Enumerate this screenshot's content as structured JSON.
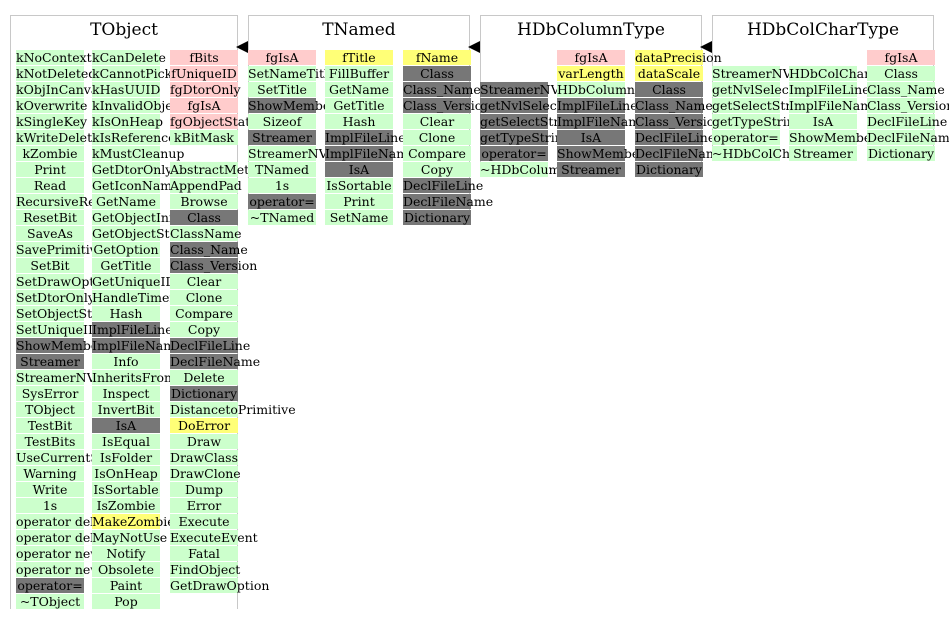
{
  "classes": [
    {
      "title": "TObject",
      "columns": [
        [
          {
            "t": "kNoContextMenu",
            "c": "g"
          },
          {
            "t": "kNotDeleted",
            "c": "g"
          },
          {
            "t": "kObjInCanvas",
            "c": "g"
          },
          {
            "t": "kOverwrite",
            "c": "g"
          },
          {
            "t": "kSingleKey",
            "c": "g"
          },
          {
            "t": "kWriteDelete",
            "c": "g"
          },
          {
            "t": "kZombie",
            "c": "g"
          },
          {
            "t": "Print",
            "c": "g"
          },
          {
            "t": "Read",
            "c": "g"
          },
          {
            "t": "RecursiveRemove",
            "c": "g"
          },
          {
            "t": "ResetBit",
            "c": "g"
          },
          {
            "t": "SaveAs",
            "c": "g"
          },
          {
            "t": "SavePrimitive",
            "c": "g"
          },
          {
            "t": "SetBit",
            "c": "g"
          },
          {
            "t": "SetDrawOption",
            "c": "g"
          },
          {
            "t": "SetDtorOnly",
            "c": "g"
          },
          {
            "t": "SetObjectStat",
            "c": "g"
          },
          {
            "t": "SetUniqueID",
            "c": "g"
          },
          {
            "t": "ShowMembers",
            "c": "d"
          },
          {
            "t": "Streamer",
            "c": "d"
          },
          {
            "t": "StreamerNVirtual",
            "c": "g"
          },
          {
            "t": "SysError",
            "c": "g"
          },
          {
            "t": "TObject",
            "c": "g"
          },
          {
            "t": "TestBit",
            "c": "g"
          },
          {
            "t": "TestBits",
            "c": "g"
          },
          {
            "t": "UseCurrentStyle",
            "c": "g"
          },
          {
            "t": "Warning",
            "c": "g"
          },
          {
            "t": "Write",
            "c": "g"
          },
          {
            "t": "1s",
            "c": "g"
          },
          {
            "t": "operator delete",
            "c": "g"
          },
          {
            "t": "operator delete[]",
            "c": "g"
          },
          {
            "t": "operator new",
            "c": "g"
          },
          {
            "t": "operator new[]",
            "c": "g"
          },
          {
            "t": "operator=",
            "c": "d"
          },
          {
            "t": "~TObject",
            "c": "g"
          }
        ],
        [
          {
            "t": "kCanDelete",
            "c": "g"
          },
          {
            "t": "kCannotPick",
            "c": "g"
          },
          {
            "t": "kHasUUID",
            "c": "g"
          },
          {
            "t": "kInvalidObject",
            "c": "g"
          },
          {
            "t": "kIsOnHeap",
            "c": "g"
          },
          {
            "t": "kIsReferenced",
            "c": "g"
          },
          {
            "t": "kMustCleanup",
            "c": "g"
          },
          {
            "t": "GetDtorOnly",
            "c": "g"
          },
          {
            "t": "GetIconName",
            "c": "g"
          },
          {
            "t": "GetName",
            "c": "g"
          },
          {
            "t": "GetObjectInfo",
            "c": "g"
          },
          {
            "t": "GetObjectStat",
            "c": "g"
          },
          {
            "t": "GetOption",
            "c": "g"
          },
          {
            "t": "GetTitle",
            "c": "g"
          },
          {
            "t": "GetUniqueID",
            "c": "g"
          },
          {
            "t": "HandleTimer",
            "c": "g"
          },
          {
            "t": "Hash",
            "c": "g"
          },
          {
            "t": "ImplFileLine",
            "c": "d"
          },
          {
            "t": "ImplFileName",
            "c": "d"
          },
          {
            "t": "Info",
            "c": "g"
          },
          {
            "t": "InheritsFrom",
            "c": "g"
          },
          {
            "t": "Inspect",
            "c": "g"
          },
          {
            "t": "InvertBit",
            "c": "g"
          },
          {
            "t": "IsA",
            "c": "d"
          },
          {
            "t": "IsEqual",
            "c": "g"
          },
          {
            "t": "IsFolder",
            "c": "g"
          },
          {
            "t": "IsOnHeap",
            "c": "g"
          },
          {
            "t": "IsSortable",
            "c": "g"
          },
          {
            "t": "IsZombie",
            "c": "g"
          },
          {
            "t": "MakeZombie",
            "c": "y"
          },
          {
            "t": "MayNotUse",
            "c": "g"
          },
          {
            "t": "Notify",
            "c": "g"
          },
          {
            "t": "Obsolete",
            "c": "g"
          },
          {
            "t": "Paint",
            "c": "g"
          },
          {
            "t": "Pop",
            "c": "g"
          }
        ],
        [
          {
            "t": "fBits",
            "c": "p"
          },
          {
            "t": "fUniqueID",
            "c": "p"
          },
          {
            "t": "fgDtorOnly",
            "c": "p"
          },
          {
            "t": "fgIsA",
            "c": "p"
          },
          {
            "t": "fgObjectStat",
            "c": "p"
          },
          {
            "t": "kBitMask",
            "c": "g"
          },
          {
            "t": "",
            "c": "n"
          },
          {
            "t": "AbstractMethod",
            "c": "g"
          },
          {
            "t": "AppendPad",
            "c": "g"
          },
          {
            "t": "Browse",
            "c": "g"
          },
          {
            "t": "Class",
            "c": "d"
          },
          {
            "t": "ClassName",
            "c": "g"
          },
          {
            "t": "Class_Name",
            "c": "d"
          },
          {
            "t": "Class_Version",
            "c": "d"
          },
          {
            "t": "Clear",
            "c": "g"
          },
          {
            "t": "Clone",
            "c": "g"
          },
          {
            "t": "Compare",
            "c": "g"
          },
          {
            "t": "Copy",
            "c": "g"
          },
          {
            "t": "DeclFileLine",
            "c": "d"
          },
          {
            "t": "DeclFileName",
            "c": "d"
          },
          {
            "t": "Delete",
            "c": "g"
          },
          {
            "t": "Dictionary",
            "c": "d"
          },
          {
            "t": "DistancetoPrimitive",
            "c": "g"
          },
          {
            "t": "DoError",
            "c": "y"
          },
          {
            "t": "Draw",
            "c": "g"
          },
          {
            "t": "DrawClass",
            "c": "g"
          },
          {
            "t": "DrawClone",
            "c": "g"
          },
          {
            "t": "Dump",
            "c": "g"
          },
          {
            "t": "Error",
            "c": "g"
          },
          {
            "t": "Execute",
            "c": "g"
          },
          {
            "t": "ExecuteEvent",
            "c": "g"
          },
          {
            "t": "Fatal",
            "c": "g"
          },
          {
            "t": "FindObject",
            "c": "g"
          },
          {
            "t": "GetDrawOption",
            "c": "g"
          }
        ]
      ]
    },
    {
      "title": "TNamed",
      "columns": [
        [
          {
            "t": "fgIsA",
            "c": "p"
          },
          {
            "t": "SetNameTitle",
            "c": "g"
          },
          {
            "t": "SetTitle",
            "c": "g"
          },
          {
            "t": "ShowMembers",
            "c": "d"
          },
          {
            "t": "Sizeof",
            "c": "g"
          },
          {
            "t": "Streamer",
            "c": "d"
          },
          {
            "t": "StreamerNVirtual",
            "c": "g"
          },
          {
            "t": "TNamed",
            "c": "g"
          },
          {
            "t": "1s",
            "c": "g"
          },
          {
            "t": "operator=",
            "c": "d"
          },
          {
            "t": "~TNamed",
            "c": "g"
          }
        ],
        [
          {
            "t": "fTitle",
            "c": "y"
          },
          {
            "t": "FillBuffer",
            "c": "g"
          },
          {
            "t": "GetName",
            "c": "g"
          },
          {
            "t": "GetTitle",
            "c": "g"
          },
          {
            "t": "Hash",
            "c": "g"
          },
          {
            "t": "ImplFileLine",
            "c": "d"
          },
          {
            "t": "ImplFileName",
            "c": "d"
          },
          {
            "t": "IsA",
            "c": "d"
          },
          {
            "t": "IsSortable",
            "c": "g"
          },
          {
            "t": "Print",
            "c": "g"
          },
          {
            "t": "SetName",
            "c": "g"
          }
        ],
        [
          {
            "t": "fName",
            "c": "y"
          },
          {
            "t": "Class",
            "c": "d"
          },
          {
            "t": "Class_Name",
            "c": "d"
          },
          {
            "t": "Class_Version",
            "c": "d"
          },
          {
            "t": "Clear",
            "c": "g"
          },
          {
            "t": "Clone",
            "c": "g"
          },
          {
            "t": "Compare",
            "c": "g"
          },
          {
            "t": "Copy",
            "c": "g"
          },
          {
            "t": "DeclFileLine",
            "c": "d"
          },
          {
            "t": "DeclFileName",
            "c": "d"
          },
          {
            "t": "Dictionary",
            "c": "d"
          }
        ]
      ]
    },
    {
      "title": "HDbColumnType",
      "columns": [
        [
          {
            "t": "",
            "c": "n"
          },
          {
            "t": "",
            "c": "n"
          },
          {
            "t": "StreamerNVirtual",
            "c": "d"
          },
          {
            "t": "getNvlSelectString",
            "c": "d"
          },
          {
            "t": "getSelectString",
            "c": "d"
          },
          {
            "t": "getTypeString",
            "c": "d"
          },
          {
            "t": "operator=",
            "c": "d"
          },
          {
            "t": "~HDbColumnType",
            "c": "g"
          }
        ],
        [
          {
            "t": "fgIsA",
            "c": "p"
          },
          {
            "t": "varLength",
            "c": "y"
          },
          {
            "t": "HDbColumnType",
            "c": "g"
          },
          {
            "t": "ImplFileLine",
            "c": "d"
          },
          {
            "t": "ImplFileName",
            "c": "d"
          },
          {
            "t": "IsA",
            "c": "d"
          },
          {
            "t": "ShowMembers",
            "c": "d"
          },
          {
            "t": "Streamer",
            "c": "d"
          }
        ],
        [
          {
            "t": "dataPrecision",
            "c": "y"
          },
          {
            "t": "dataScale",
            "c": "y"
          },
          {
            "t": "Class",
            "c": "d"
          },
          {
            "t": "Class_Name",
            "c": "d"
          },
          {
            "t": "Class_Version",
            "c": "d"
          },
          {
            "t": "DeclFileLine",
            "c": "d"
          },
          {
            "t": "DeclFileName",
            "c": "d"
          },
          {
            "t": "Dictionary",
            "c": "d"
          }
        ]
      ]
    },
    {
      "title": "HDbColCharType",
      "columns": [
        [
          {
            "t": "",
            "c": "n"
          },
          {
            "t": "StreamerNVirtual",
            "c": "g"
          },
          {
            "t": "getNvlSelectString",
            "c": "g"
          },
          {
            "t": "getSelectString",
            "c": "g"
          },
          {
            "t": "getTypeString",
            "c": "g"
          },
          {
            "t": "operator=",
            "c": "g"
          },
          {
            "t": "~HDbColCharType",
            "c": "g"
          }
        ],
        [
          {
            "t": "",
            "c": "n"
          },
          {
            "t": "HDbColCharType",
            "c": "g"
          },
          {
            "t": "ImplFileLine",
            "c": "g"
          },
          {
            "t": "ImplFileName",
            "c": "g"
          },
          {
            "t": "IsA",
            "c": "g"
          },
          {
            "t": "ShowMembers",
            "c": "g"
          },
          {
            "t": "Streamer",
            "c": "g"
          }
        ],
        [
          {
            "t": "fgIsA",
            "c": "p"
          },
          {
            "t": "Class",
            "c": "g"
          },
          {
            "t": "Class_Name",
            "c": "g"
          },
          {
            "t": "Class_Version",
            "c": "g"
          },
          {
            "t": "DeclFileLine",
            "c": "g"
          },
          {
            "t": "DeclFileName",
            "c": "g"
          },
          {
            "t": "Dictionary",
            "c": "g"
          }
        ]
      ]
    }
  ]
}
